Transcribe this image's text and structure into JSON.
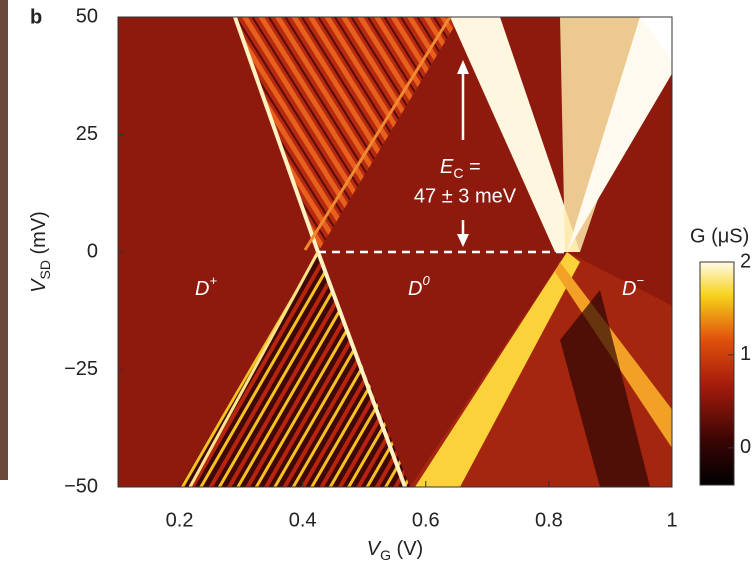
{
  "chart_data": {
    "type": "heatmap",
    "panel_label": "b",
    "xlabel": {
      "symbol": "V",
      "subscript": "G",
      "unit": " (V)"
    },
    "ylabel": {
      "symbol": "V",
      "subscript": "SD",
      "unit": " (mV)"
    },
    "xlim": [
      0.1,
      1
    ],
    "xticks": [
      0.2,
      0.4,
      0.6,
      0.8,
      1
    ],
    "ylim": [
      -50,
      50
    ],
    "yticks": [
      50,
      25,
      0,
      {
        "value": -25,
        "label": "−25"
      },
      {
        "value": -50,
        "label": "−50"
      }
    ],
    "colorbar": {
      "label": "G (μS)",
      "clim": [
        -0.4,
        2
      ],
      "ticks": [
        0,
        1,
        2
      ]
    },
    "annotations": {
      "d_plus": {
        "base": "D",
        "sup": "+"
      },
      "d_zero": {
        "base": "D",
        "sup": "0"
      },
      "d_minus": {
        "base": "D",
        "sup": "−"
      },
      "charging_energy": {
        "symbol": "E",
        "subscript": "C",
        "suffix": " =",
        "value_text": "47 ± 3 meV"
      }
    }
  }
}
